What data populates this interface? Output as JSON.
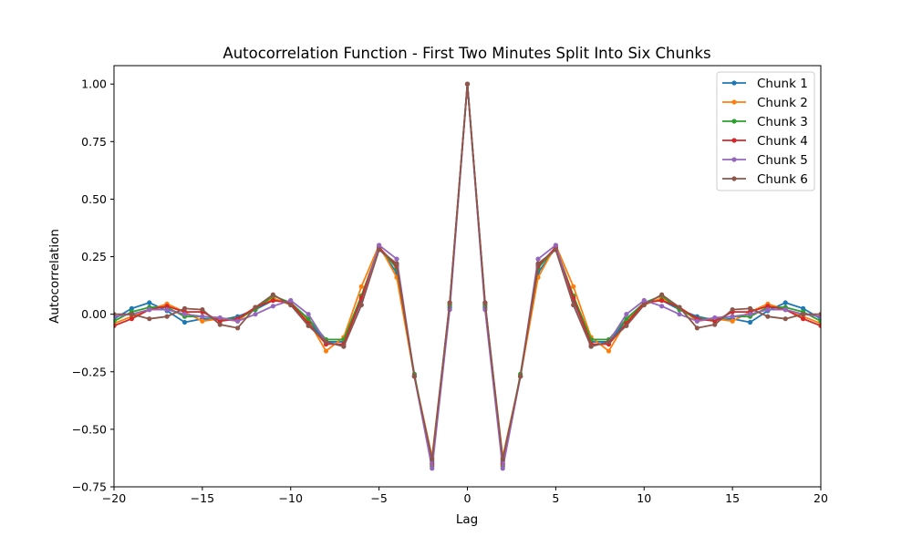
{
  "chart_data": {
    "type": "line",
    "title": "Autocorrelation Function - First Two Minutes Split Into Six Chunks",
    "xlabel": "Lag",
    "ylabel": "Autocorrelation",
    "xlim": [
      -20,
      20
    ],
    "ylim": [
      -0.75,
      1.08
    ],
    "xticks": [
      -20,
      -15,
      -10,
      -5,
      0,
      5,
      10,
      15,
      20
    ],
    "xtick_labels": [
      "−20",
      "−15",
      "−10",
      "−5",
      "0",
      "5",
      "10",
      "15",
      "20"
    ],
    "yticks": [
      -0.75,
      -0.5,
      -0.25,
      0,
      0.25,
      0.5,
      0.75,
      1.0
    ],
    "ytick_labels": [
      "−0.75",
      "−0.50",
      "−0.25",
      "0.00",
      "0.25",
      "0.50",
      "0.75",
      "1.00"
    ],
    "grid": false,
    "legend_position": "top-right",
    "x": [
      -20,
      -19,
      -18,
      -17,
      -16,
      -15,
      -14,
      -13,
      -12,
      -11,
      -10,
      -9,
      -8,
      -7,
      -6,
      -5,
      -4,
      -3,
      -2,
      -1,
      0,
      1,
      2,
      3,
      4,
      5,
      6,
      7,
      8,
      9,
      10,
      11,
      12,
      13,
      14,
      15,
      16,
      17,
      18,
      19,
      20
    ],
    "series": [
      {
        "name": "Chunk 1",
        "color": "#1f77b4",
        "values": [
          -0.02,
          0.025,
          0.05,
          0.015,
          -0.035,
          -0.02,
          -0.025,
          -0.01,
          0.02,
          0.06,
          0.05,
          -0.03,
          -0.12,
          -0.12,
          0.06,
          0.29,
          0.18,
          -0.27,
          -0.64,
          0.03,
          1.0,
          0.03,
          -0.64,
          -0.27,
          0.18,
          0.29,
          0.06,
          -0.12,
          -0.12,
          -0.03,
          0.05,
          0.06,
          0.02,
          -0.01,
          -0.025,
          -0.02,
          -0.035,
          0.015,
          0.05,
          0.025,
          -0.02
        ]
      },
      {
        "name": "Chunk 2",
        "color": "#ff7f0e",
        "values": [
          -0.04,
          -0.01,
          0.02,
          0.045,
          0.01,
          -0.03,
          -0.02,
          -0.03,
          0.03,
          0.07,
          0.04,
          -0.03,
          -0.16,
          -0.1,
          0.12,
          0.3,
          0.16,
          -0.27,
          -0.62,
          0.04,
          1.0,
          0.04,
          -0.62,
          -0.27,
          0.16,
          0.3,
          0.12,
          -0.1,
          -0.16,
          -0.03,
          0.04,
          0.07,
          0.03,
          -0.03,
          -0.02,
          -0.03,
          0.01,
          0.045,
          0.02,
          -0.01,
          -0.04
        ]
      },
      {
        "name": "Chunk 3",
        "color": "#2ca02c",
        "values": [
          -0.03,
          0.01,
          0.03,
          0.03,
          -0.01,
          -0.01,
          -0.02,
          -0.02,
          0.02,
          0.08,
          0.05,
          -0.02,
          -0.11,
          -0.11,
          0.08,
          0.29,
          0.2,
          -0.26,
          -0.66,
          0.04,
          1.0,
          0.04,
          -0.66,
          -0.26,
          0.2,
          0.29,
          0.08,
          -0.11,
          -0.11,
          -0.02,
          0.05,
          0.08,
          0.02,
          -0.02,
          -0.02,
          -0.01,
          -0.01,
          0.03,
          0.03,
          0.01,
          -0.03
        ]
      },
      {
        "name": "Chunk 4",
        "color": "#d62728",
        "values": [
          -0.05,
          -0.02,
          0.02,
          0.035,
          0.01,
          0.01,
          -0.03,
          -0.02,
          0.03,
          0.06,
          0.05,
          -0.04,
          -0.13,
          -0.13,
          0.07,
          0.29,
          0.21,
          -0.27,
          -0.65,
          0.05,
          1.0,
          0.05,
          -0.65,
          -0.27,
          0.21,
          0.29,
          0.07,
          -0.13,
          -0.13,
          -0.04,
          0.05,
          0.06,
          0.03,
          -0.02,
          -0.03,
          0.01,
          0.01,
          0.035,
          0.02,
          -0.02,
          -0.05
        ]
      },
      {
        "name": "Chunk 5",
        "color": "#9467bd",
        "values": [
          -0.01,
          0.0,
          0.02,
          0.02,
          0.0,
          -0.01,
          -0.015,
          -0.03,
          0.0,
          0.035,
          0.06,
          0.0,
          -0.12,
          -0.14,
          0.04,
          0.3,
          0.24,
          -0.27,
          -0.67,
          0.02,
          1.0,
          0.02,
          -0.67,
          -0.27,
          0.24,
          0.3,
          0.04,
          -0.14,
          -0.12,
          0.0,
          0.06,
          0.035,
          0.0,
          -0.03,
          -0.015,
          -0.01,
          0.0,
          0.02,
          0.02,
          0.0,
          -0.01
        ]
      },
      {
        "name": "Chunk 6",
        "color": "#8c564b",
        "values": [
          0.0,
          0.0,
          -0.02,
          -0.01,
          0.025,
          0.02,
          -0.045,
          -0.06,
          0.03,
          0.085,
          0.04,
          -0.05,
          -0.12,
          -0.14,
          0.04,
          0.28,
          0.22,
          -0.27,
          -0.63,
          0.05,
          1.0,
          0.05,
          -0.63,
          -0.27,
          0.22,
          0.28,
          0.04,
          -0.14,
          -0.12,
          -0.05,
          0.04,
          0.085,
          0.03,
          -0.06,
          -0.045,
          0.02,
          0.025,
          -0.01,
          -0.02,
          0.0,
          0.0
        ]
      }
    ]
  }
}
